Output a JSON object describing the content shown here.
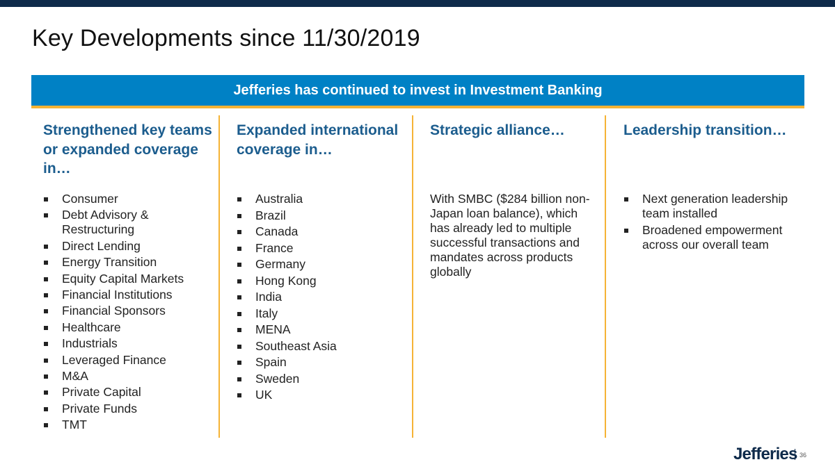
{
  "title": "Key Developments since 11/30/2019",
  "banner": "Jefferies has continued to invest in Investment Banking",
  "columns": [
    {
      "heading": "Strengthened key teams or expanded coverage in…",
      "items": [
        "Consumer",
        "Debt Advisory & Restructuring",
        "Direct Lending",
        "Energy Transition",
        "Equity Capital Markets",
        "Financial Institutions",
        "Financial Sponsors",
        "Healthcare",
        "Industrials",
        "Leveraged Finance",
        "M&A",
        "Private Capital",
        "Private Funds",
        "TMT"
      ]
    },
    {
      "heading": "Expanded international coverage in…",
      "items": [
        "Australia",
        "Brazil",
        "Canada",
        "France",
        "Germany",
        "Hong Kong",
        "India",
        "Italy",
        "MENA",
        "Southeast Asia",
        "Spain",
        "Sweden",
        "UK"
      ]
    },
    {
      "heading": "Strategic alliance…",
      "text": "With SMBC ($284 billion non-Japan loan balance), which has already led to multiple successful transactions and mandates across products globally"
    },
    {
      "heading": "Leadership transition…",
      "items": [
        "Next generation leadership team installed",
        "Broadened empowerment across our overall team"
      ]
    }
  ],
  "footer": {
    "logo": "Jefferies",
    "page_number": "36"
  },
  "colors": {
    "top_bar": "#0e2a4a",
    "banner_bg": "#0081c5",
    "accent_gold": "#f5b335",
    "heading_blue": "#1c5d8e"
  }
}
